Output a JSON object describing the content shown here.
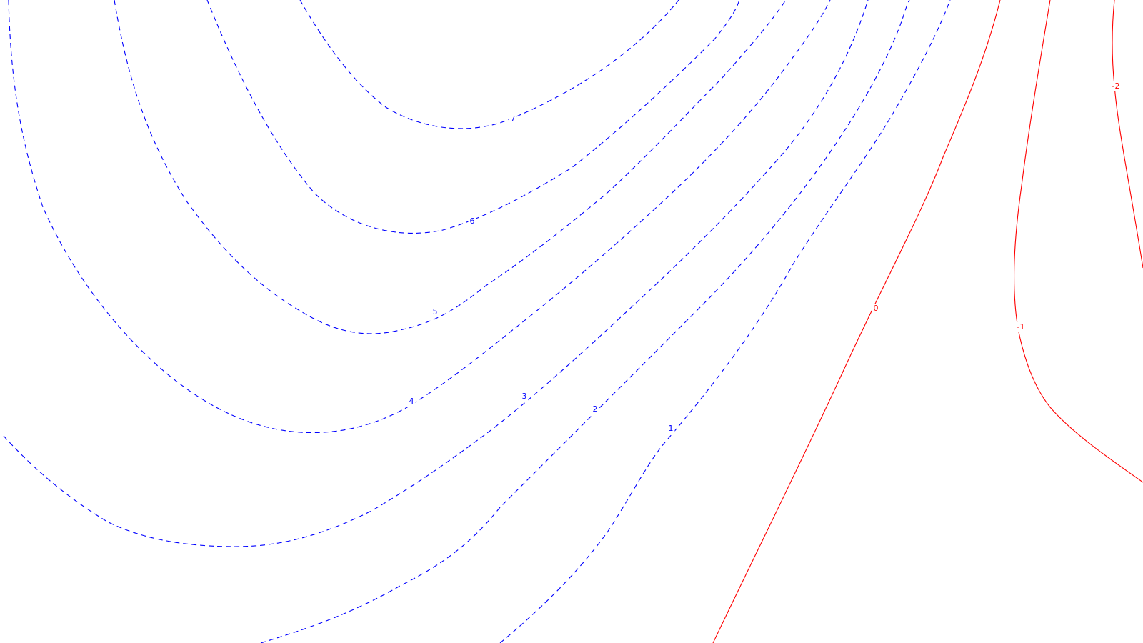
{
  "chart_data": {
    "type": "contour",
    "style": {
      "positive_color": "#0000ff",
      "negative_color": "#ff0000",
      "positive_line": "dashed",
      "nonpositive_line": "solid",
      "background": "#ffffff"
    },
    "levels": [
      {
        "value": 7,
        "label": "7"
      },
      {
        "value": 6,
        "label": "6"
      },
      {
        "value": 5,
        "label": "5"
      },
      {
        "value": 4,
        "label": "4"
      },
      {
        "value": 3,
        "label": "3"
      },
      {
        "value": 2,
        "label": "2"
      },
      {
        "value": 1,
        "label": "1"
      },
      {
        "value": 0,
        "label": "0"
      },
      {
        "value": -1,
        "label": "-1"
      },
      {
        "value": -2,
        "label": "-2"
      }
    ]
  }
}
